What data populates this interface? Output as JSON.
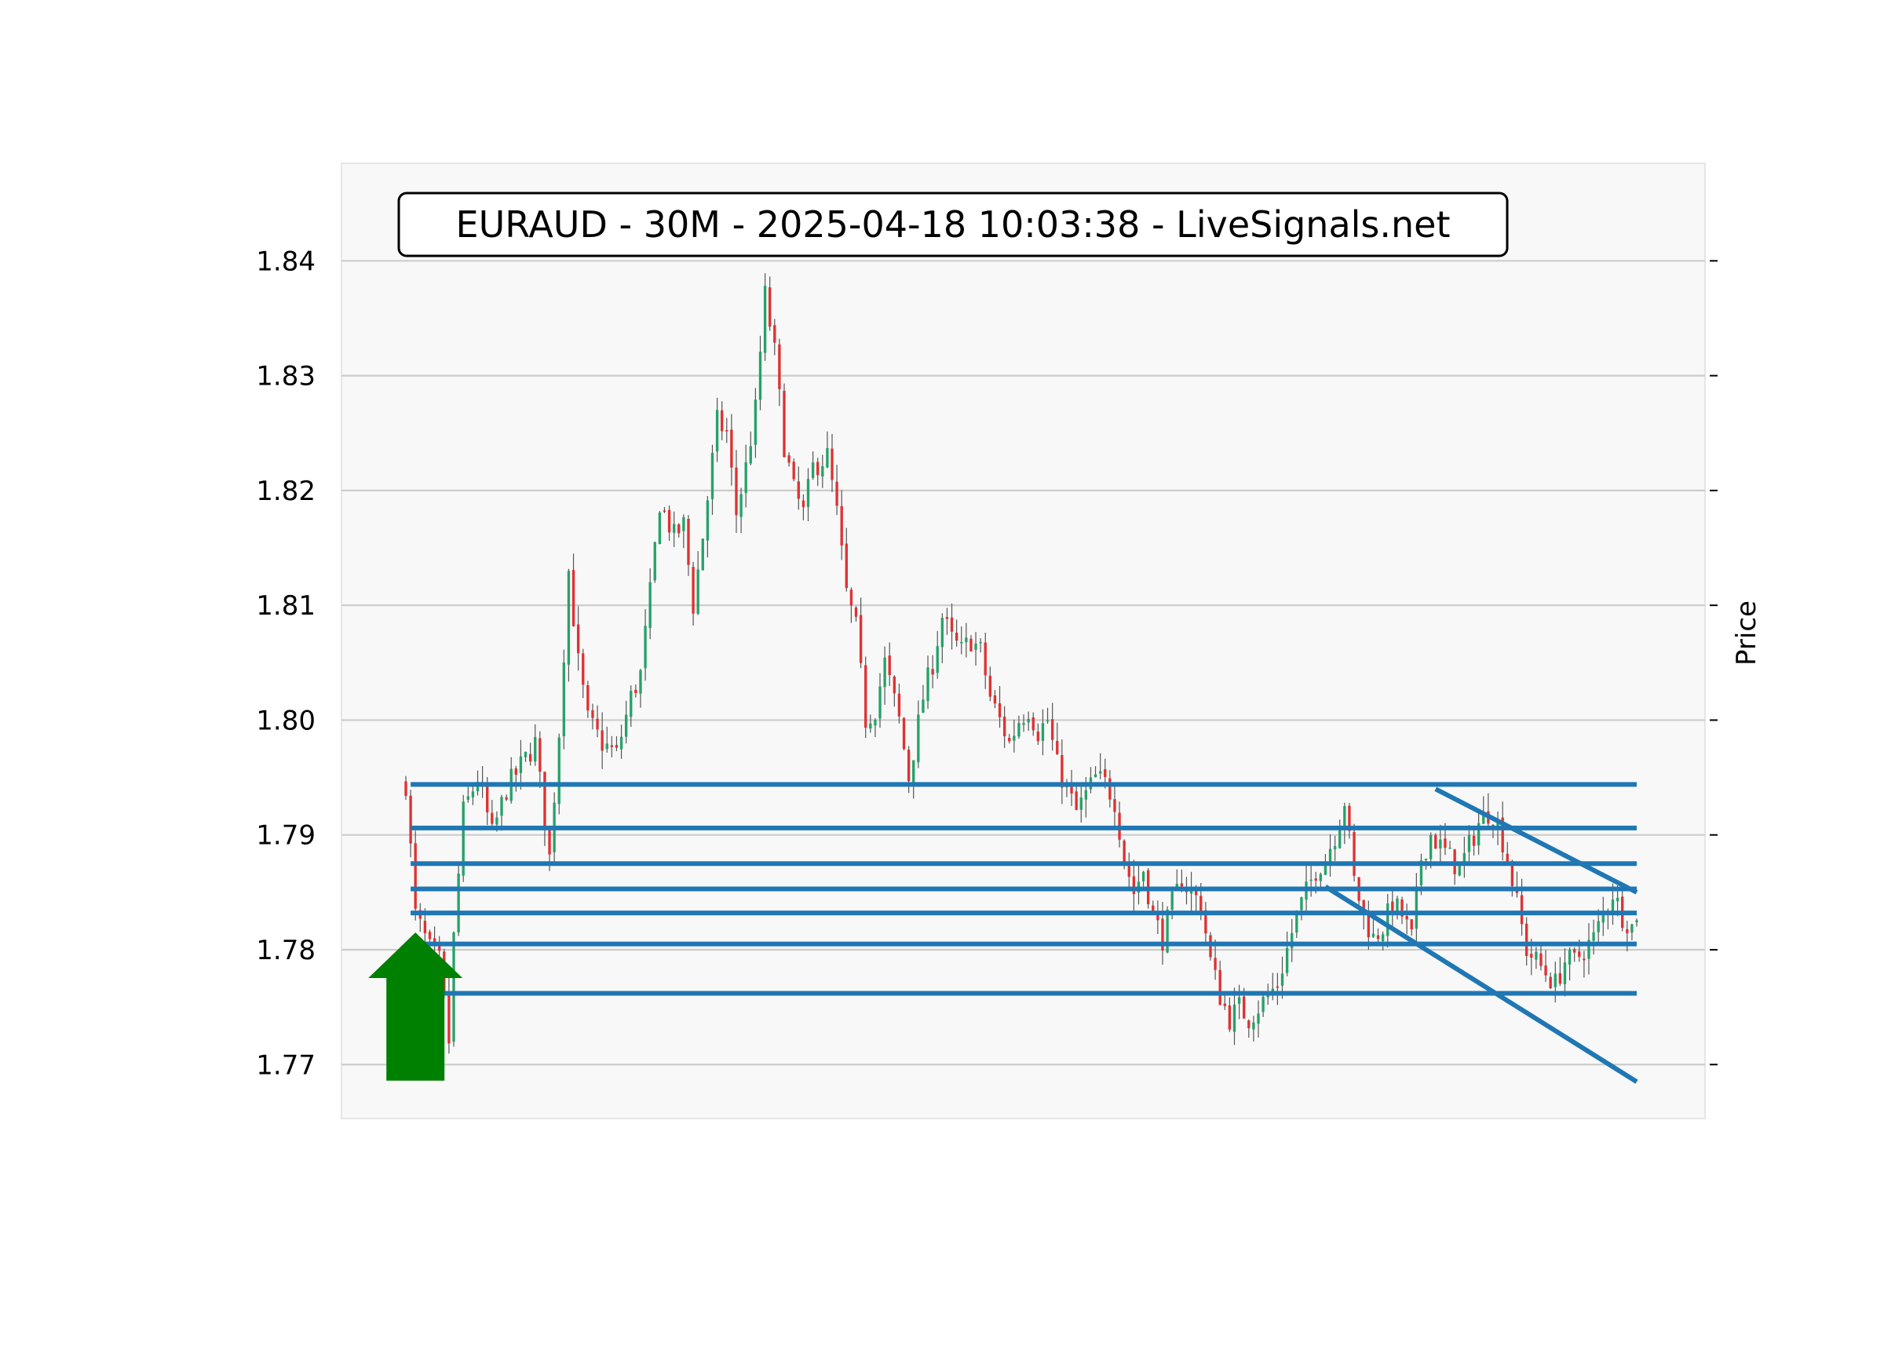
{
  "chart_data": {
    "type": "candlestick",
    "title": "EURAUD - 30M - 2025-04-18 10:03:38 - LiveSignals.net",
    "ylabel": "Price",
    "ylim": [
      1.7653,
      1.8485
    ],
    "yticks": [
      1.77,
      1.78,
      1.79,
      1.8,
      1.81,
      1.82,
      1.83,
      1.84
    ],
    "ytick_labels": [
      "1.77",
      "1.78",
      "1.79",
      "1.80",
      "1.81",
      "1.82",
      "1.83",
      "1.84"
    ],
    "grid": true,
    "colors": {
      "up": "#26a269",
      "down": "#e03131",
      "wick": "#555555",
      "level": "#1f77b4",
      "arrow": "#008000",
      "plot_bg": "#f8f8f8",
      "grid": "#cccccc"
    },
    "candle_count": 258,
    "price_path": [
      [
        0,
        1.7945
      ],
      [
        2,
        1.783
      ],
      [
        5,
        1.78
      ],
      [
        7,
        1.779
      ],
      [
        9,
        1.772
      ],
      [
        10,
        1.781
      ],
      [
        12,
        1.792
      ],
      [
        15,
        1.795
      ],
      [
        18,
        1.79
      ],
      [
        21,
        1.794
      ],
      [
        24,
        1.796
      ],
      [
        27,
        1.798
      ],
      [
        30,
        1.788
      ],
      [
        32,
        1.799
      ],
      [
        34,
        1.813
      ],
      [
        36,
        1.805
      ],
      [
        38,
        1.8
      ],
      [
        41,
        1.798
      ],
      [
        44,
        1.797
      ],
      [
        47,
        1.802
      ],
      [
        49,
        1.804
      ],
      [
        51,
        1.811
      ],
      [
        53,
        1.819
      ],
      [
        56,
        1.816
      ],
      [
        58,
        1.817
      ],
      [
        60,
        1.81
      ],
      [
        62,
        1.816
      ],
      [
        65,
        1.826
      ],
      [
        67,
        1.825
      ],
      [
        69,
        1.818
      ],
      [
        71,
        1.822
      ],
      [
        73,
        1.827
      ],
      [
        75,
        1.837
      ],
      [
        77,
        1.832
      ],
      [
        79,
        1.824
      ],
      [
        81,
        1.82
      ],
      [
        83,
        1.818
      ],
      [
        85,
        1.822
      ],
      [
        88,
        1.823
      ],
      [
        90,
        1.818
      ],
      [
        92,
        1.811
      ],
      [
        94,
        1.808
      ],
      [
        96,
        1.8
      ],
      [
        98,
        1.801
      ],
      [
        100,
        1.805
      ],
      [
        103,
        1.8
      ],
      [
        105,
        1.795
      ],
      [
        108,
        1.802
      ],
      [
        110,
        1.805
      ],
      [
        112,
        1.809
      ],
      [
        114,
        1.807
      ],
      [
        116,
        1.806
      ],
      [
        118,
        1.807
      ],
      [
        120,
        1.806
      ],
      [
        122,
        1.802
      ],
      [
        124,
        1.8
      ],
      [
        126,
        1.798
      ],
      [
        128,
        1.8
      ],
      [
        130,
        1.801
      ],
      [
        132,
        1.799
      ],
      [
        134,
        1.8
      ],
      [
        136,
        1.796
      ],
      [
        138,
        1.794
      ],
      [
        140,
        1.792
      ],
      [
        142,
        1.7935
      ],
      [
        144,
        1.795
      ],
      [
        146,
        1.7945
      ],
      [
        148,
        1.793
      ],
      [
        150,
        1.788
      ],
      [
        152,
        1.785
      ],
      [
        154,
        1.787
      ],
      [
        156,
        1.783
      ],
      [
        158,
        1.781
      ],
      [
        160,
        1.784
      ],
      [
        162,
        1.786
      ],
      [
        164,
        1.785
      ],
      [
        166,
        1.784
      ],
      [
        168,
        1.779
      ],
      [
        170,
        1.776
      ],
      [
        172,
        1.774
      ],
      [
        174,
        1.775
      ],
      [
        176,
        1.774
      ],
      [
        178,
        1.775
      ],
      [
        180,
        1.776
      ],
      [
        182,
        1.777
      ],
      [
        184,
        1.78
      ],
      [
        186,
        1.783
      ],
      [
        188,
        1.785
      ],
      [
        190,
        1.787
      ],
      [
        192,
        1.788
      ],
      [
        194,
        1.79
      ],
      [
        196,
        1.793
      ],
      [
        198,
        1.786
      ],
      [
        200,
        1.783
      ],
      [
        202,
        1.781
      ],
      [
        204,
        1.782
      ],
      [
        206,
        1.784
      ],
      [
        208,
        1.783
      ],
      [
        210,
        1.781
      ],
      [
        212,
        1.788
      ],
      [
        214,
        1.79
      ],
      [
        216,
        1.789
      ],
      [
        218,
        1.788
      ],
      [
        220,
        1.787
      ],
      [
        222,
        1.789
      ],
      [
        224,
        1.791
      ],
      [
        226,
        1.792
      ],
      [
        228,
        1.791
      ],
      [
        230,
        1.788
      ],
      [
        232,
        1.784
      ],
      [
        234,
        1.78
      ],
      [
        236,
        1.779
      ],
      [
        238,
        1.778
      ],
      [
        240,
        1.777
      ],
      [
        242,
        1.779
      ],
      [
        244,
        1.779
      ],
      [
        246,
        1.78
      ],
      [
        248,
        1.781
      ],
      [
        250,
        1.783
      ],
      [
        252,
        1.785
      ],
      [
        254,
        1.783
      ],
      [
        256,
        1.782
      ],
      [
        257,
        1.7832
      ]
    ],
    "horizontal_levels": [
      {
        "price": 1.7944,
        "start": 1,
        "end": 257
      },
      {
        "price": 1.7906,
        "start": 1,
        "end": 257
      },
      {
        "price": 1.7875,
        "start": 1,
        "end": 257
      },
      {
        "price": 1.7853,
        "start": 1,
        "end": 257
      },
      {
        "price": 1.7832,
        "start": 1,
        "end": 257
      },
      {
        "price": 1.7805,
        "start": 1,
        "end": 257
      },
      {
        "price": 1.7762,
        "start": 8,
        "end": 257
      }
    ],
    "trend_lines": [
      {
        "from": [
          215,
          1.794
        ],
        "to": [
          257,
          1.785
        ]
      },
      {
        "from": [
          192,
          1.7855
        ],
        "to": [
          257,
          1.7685
        ]
      }
    ],
    "signal_arrow": {
      "direction": "up",
      "candle_index": 2,
      "tip": 1.7815,
      "base": 1.7686
    }
  }
}
